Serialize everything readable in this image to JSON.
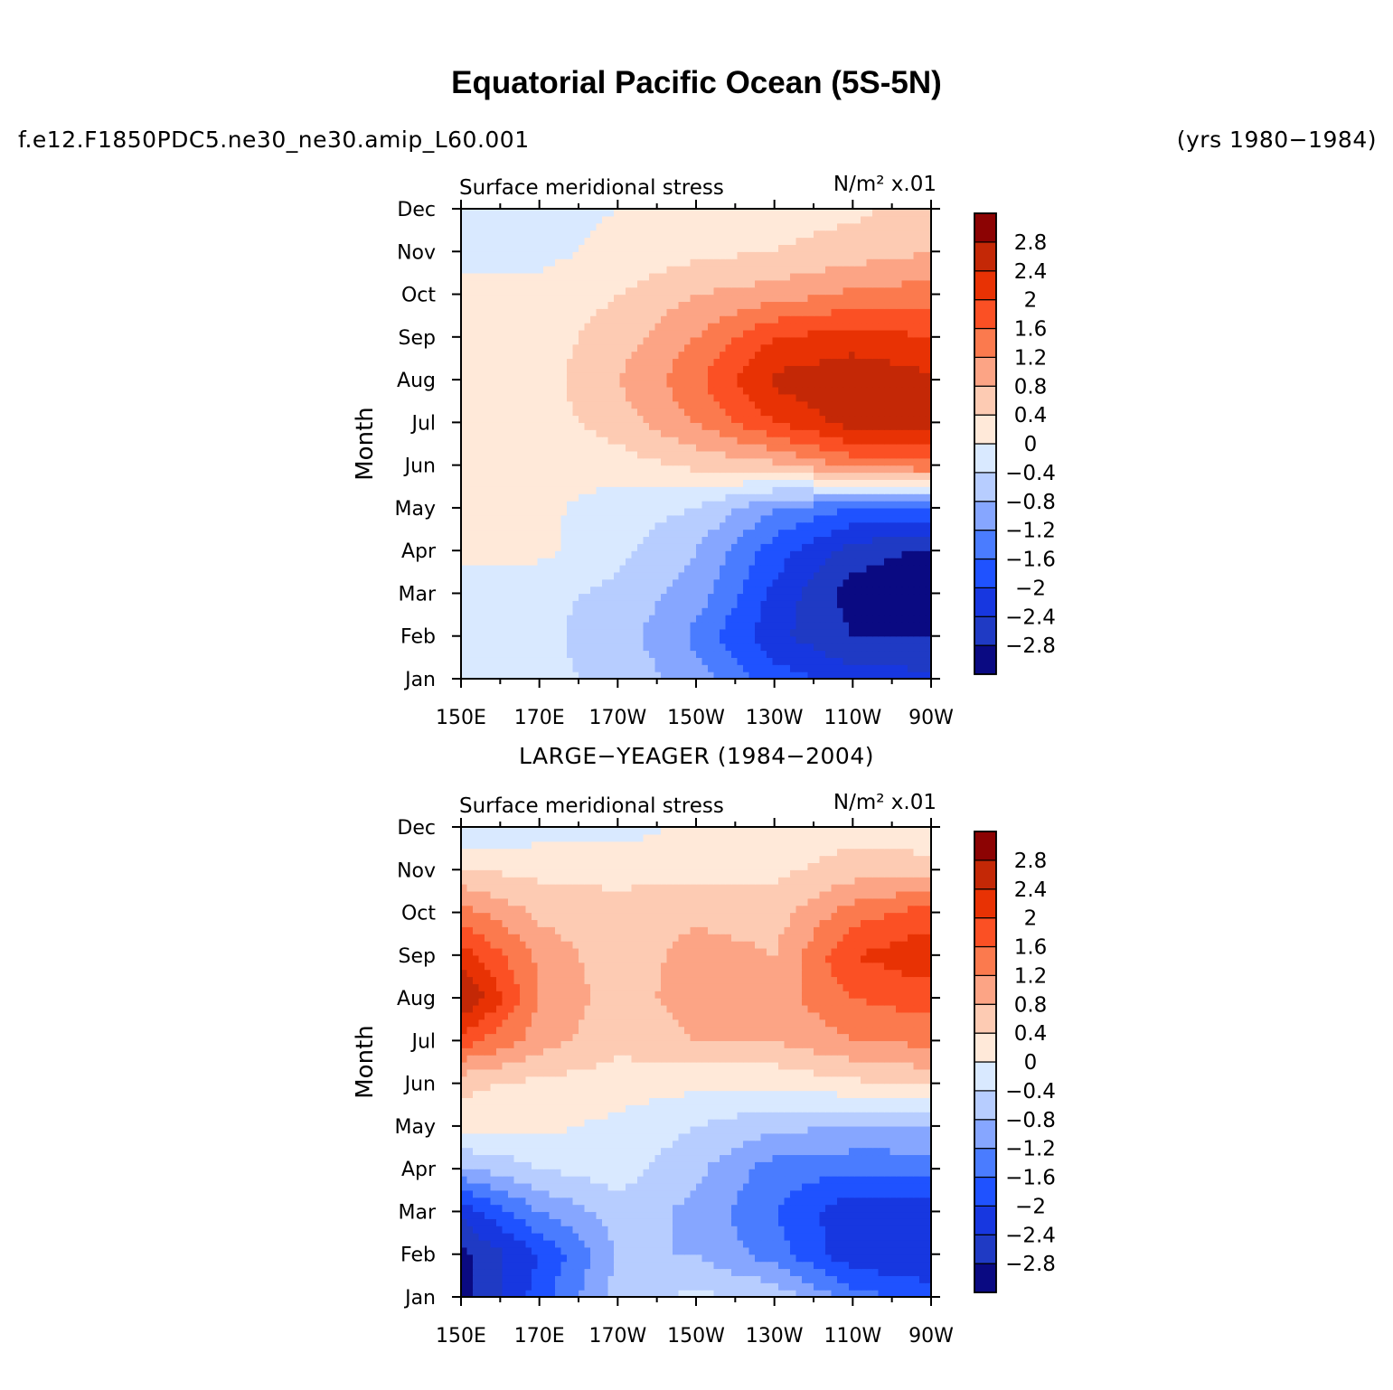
{
  "title": "Equatorial Pacific Ocean (5S-5N)",
  "case_name": "f.e12.F1850PDC5.ne30_ne30.amip_L60.001",
  "years": "(yrs 1980−1984)",
  "colormap": [
    "#0a0a82",
    "#1f3ac4",
    "#1737e0",
    "#1f52ff",
    "#4a7cff",
    "#86a6ff",
    "#b7cdff",
    "#d9e9ff",
    "#ffe9d9",
    "#fdcbb3",
    "#fca485",
    "#fb7a4e",
    "#fb5024",
    "#e83204",
    "#c42806",
    "#8c0303"
  ],
  "chart_data": [
    {
      "type": "heatmap",
      "panel_title": "",
      "left_title": "Surface meridional stress",
      "right_title": "N/m² x.01",
      "ylabel": "Month",
      "xlabel": "",
      "x_tick_labels": [
        "150E",
        "170E",
        "170W",
        "150W",
        "130W",
        "110W",
        "90W"
      ],
      "y_tick_labels": [
        "Jan",
        "Feb",
        "Mar",
        "Apr",
        "May",
        "Jun",
        "Jul",
        "Aug",
        "Sep",
        "Oct",
        "Nov",
        "Dec"
      ],
      "xlim_deg_east": [
        150,
        270
      ],
      "colorbar_levels": [
        "−2.8",
        "−2.4",
        "−2",
        "−1.6",
        "−1.2",
        "−0.8",
        "−0.4",
        "0",
        "0.4",
        "0.8",
        "1.2",
        "1.6",
        "2",
        "2.4",
        "2.8"
      ],
      "x_deg_east": [
        150,
        170,
        190,
        210,
        230,
        250,
        270
      ],
      "months": [
        "Jan",
        "Feb",
        "Mar",
        "Apr",
        "May",
        "Jun",
        "Jul",
        "Aug",
        "Sep",
        "Oct",
        "Nov",
        "Dec"
      ],
      "z": [
        [
          -0.2,
          -0.3,
          -0.5,
          -1.0,
          -1.8,
          -2.2,
          -2.3
        ],
        [
          -0.2,
          -0.3,
          -0.6,
          -1.3,
          -2.3,
          -2.8,
          -2.8
        ],
        [
          -0.2,
          -0.3,
          -0.5,
          -1.0,
          -2.1,
          -3.0,
          -3.1
        ],
        [
          0.1,
          0.1,
          -0.3,
          -0.8,
          -1.8,
          -2.6,
          -2.9
        ],
        [
          0.1,
          0.1,
          -0.2,
          -0.4,
          -1.2,
          -1.6,
          -1.6
        ],
        [
          0.1,
          0.1,
          0.2,
          0.5,
          0.7,
          1.3,
          1.5
        ],
        [
          0.1,
          0.2,
          0.6,
          1.2,
          2.0,
          2.6,
          2.6
        ],
        [
          0.2,
          0.2,
          0.8,
          1.5,
          2.5,
          2.7,
          2.5
        ],
        [
          0.1,
          0.2,
          0.6,
          1.2,
          2.0,
          2.2,
          2.0
        ],
        [
          0.1,
          0.1,
          0.4,
          0.8,
          1.0,
          1.3,
          1.4
        ],
        [
          -0.1,
          -0.1,
          0.1,
          0.3,
          0.4,
          0.6,
          0.8
        ],
        [
          -0.2,
          -0.1,
          0.0,
          0.2,
          0.2,
          0.3,
          0.6
        ]
      ]
    },
    {
      "type": "heatmap",
      "panel_title": "LARGE−YEAGER (1984−2004)",
      "left_title": "Surface meridional stress",
      "right_title": "N/m² x.01",
      "ylabel": "Month",
      "xlabel": "",
      "x_tick_labels": [
        "150E",
        "170E",
        "170W",
        "150W",
        "130W",
        "110W",
        "90W"
      ],
      "y_tick_labels": [
        "Jan",
        "Feb",
        "Mar",
        "Apr",
        "May",
        "Jun",
        "Jul",
        "Aug",
        "Sep",
        "Oct",
        "Nov",
        "Dec"
      ],
      "xlim_deg_east": [
        150,
        270
      ],
      "colorbar_levels": [
        "−2.8",
        "−2.4",
        "−2",
        "−1.6",
        "−1.2",
        "−0.8",
        "−0.4",
        "0",
        "0.4",
        "0.8",
        "1.2",
        "1.6",
        "2",
        "2.4",
        "2.8"
      ],
      "x_deg_east": [
        150,
        170,
        190,
        210,
        230,
        250,
        270
      ],
      "months": [
        "Jan",
        "Feb",
        "Mar",
        "Apr",
        "May",
        "Jun",
        "Jul",
        "Aug",
        "Sep",
        "Oct",
        "Nov",
        "Dec"
      ],
      "z": [
        [
          -3.0,
          -1.8,
          -0.6,
          -0.3,
          -0.5,
          -1.4,
          -1.8
        ],
        [
          -2.9,
          -2.0,
          -0.8,
          -0.8,
          -1.4,
          -2.3,
          -2.4
        ],
        [
          -2.3,
          -1.2,
          -0.6,
          -0.9,
          -1.6,
          -2.3,
          -2.2
        ],
        [
          -0.9,
          -0.4,
          -0.2,
          -0.7,
          -1.4,
          -1.5,
          -1.4
        ],
        [
          0.2,
          0.1,
          -0.1,
          -0.4,
          -0.7,
          -0.8,
          -0.9
        ],
        [
          0.5,
          0.3,
          0.2,
          0.1,
          0.1,
          0.3,
          0.5
        ],
        [
          1.8,
          1.0,
          0.5,
          0.8,
          0.8,
          1.2,
          1.3
        ],
        [
          2.9,
          1.2,
          0.6,
          1.0,
          1.0,
          1.6,
          1.8
        ],
        [
          2.2,
          1.1,
          0.5,
          1.0,
          0.8,
          2.0,
          2.3
        ],
        [
          1.4,
          0.7,
          0.5,
          0.7,
          0.6,
          1.4,
          1.8
        ],
        [
          0.4,
          0.3,
          0.3,
          0.3,
          0.3,
          0.6,
          0.6
        ],
        [
          -0.4,
          -0.2,
          -0.2,
          0.1,
          0.2,
          0.2,
          0.1
        ]
      ]
    }
  ]
}
